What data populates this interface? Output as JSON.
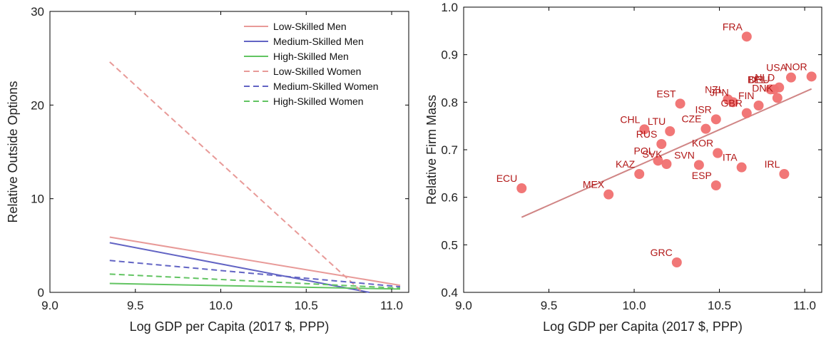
{
  "chart_data": [
    {
      "type": "line",
      "xlabel": "Log GDP per Capita (2017 $, PPP)",
      "ylabel": "Relative Outside Options",
      "xlim": [
        9.0,
        11.1
      ],
      "ylim": [
        0,
        30
      ],
      "xticks": [
        "9.0",
        "9.5",
        "10.0",
        "10.5",
        "11.0"
      ],
      "yticks": [
        "0",
        "10",
        "20",
        "30"
      ],
      "xtick_values": [
        9.0,
        9.5,
        10.0,
        10.5,
        11.0
      ],
      "ytick_values": [
        0,
        10,
        20,
        30
      ],
      "grid": false,
      "legend_position": "top-right",
      "series": [
        {
          "name": "Low-Skilled Men",
          "color": "#e89a98",
          "dash": "solid",
          "x": [
            9.35,
            11.05
          ],
          "y": [
            5.9,
            0.75
          ]
        },
        {
          "name": "Medium-Skilled Men",
          "color": "#6264c4",
          "dash": "solid",
          "x": [
            9.35,
            10.87
          ],
          "y": [
            5.3,
            0.0
          ]
        },
        {
          "name": "High-Skilled Men",
          "color": "#62c462",
          "dash": "solid",
          "x": [
            9.35,
            11.05
          ],
          "y": [
            0.95,
            0.35
          ]
        },
        {
          "name": "Low-Skilled Women",
          "color": "#e89a98",
          "dash": "dashed",
          "x": [
            9.35,
            10.83
          ],
          "y": [
            24.6,
            0.0
          ]
        },
        {
          "name": "Medium-Skilled Women",
          "color": "#6264c4",
          "dash": "dashed",
          "x": [
            9.35,
            11.05
          ],
          "y": [
            3.4,
            0.6
          ]
        },
        {
          "name": "High-Skilled Women",
          "color": "#62c462",
          "dash": "dashed",
          "x": [
            9.35,
            11.05
          ],
          "y": [
            1.95,
            0.45
          ]
        }
      ]
    },
    {
      "type": "scatter",
      "xlabel": "Log GDP per Capita (2017 $, PPP)",
      "ylabel": "Relative Firm Mass",
      "xlim": [
        9.0,
        11.1
      ],
      "ylim": [
        0.4,
        1.0
      ],
      "xticks": [
        "9.0",
        "9.5",
        "10.0",
        "10.5",
        "11.0"
      ],
      "yticks": [
        "0.4",
        "0.5",
        "0.6",
        "0.7",
        "0.8",
        "0.9",
        "1.0"
      ],
      "xtick_values": [
        9.0,
        9.5,
        10.0,
        10.5,
        11.0
      ],
      "ytick_values": [
        0.4,
        0.5,
        0.6,
        0.7,
        0.8,
        0.9,
        1.0
      ],
      "grid": false,
      "point_color": "#f07070",
      "label_color": "#b21818",
      "fit_line": {
        "color": "#d08585",
        "x": [
          9.34,
          11.04
        ],
        "y": [
          0.558,
          0.828
        ]
      },
      "points": [
        {
          "label": "ECU",
          "x": 9.34,
          "y": 0.619
        },
        {
          "label": "MEX",
          "x": 9.85,
          "y": 0.606
        },
        {
          "label": "KAZ",
          "x": 10.03,
          "y": 0.649
        },
        {
          "label": "POL",
          "x": 10.14,
          "y": 0.677
        },
        {
          "label": "SVK",
          "x": 10.19,
          "y": 0.67
        },
        {
          "label": "CHL",
          "x": 10.06,
          "y": 0.743
        },
        {
          "label": "LTU",
          "x": 10.21,
          "y": 0.739
        },
        {
          "label": "RUS",
          "x": 10.16,
          "y": 0.712
        },
        {
          "label": "SVN",
          "x": 10.38,
          "y": 0.668
        },
        {
          "label": "GRC",
          "x": 10.25,
          "y": 0.463
        },
        {
          "label": "EST",
          "x": 10.27,
          "y": 0.797
        },
        {
          "label": "CZE",
          "x": 10.42,
          "y": 0.744
        },
        {
          "label": "ISR",
          "x": 10.48,
          "y": 0.764
        },
        {
          "label": "KOR",
          "x": 10.49,
          "y": 0.693
        },
        {
          "label": "ESP",
          "x": 10.48,
          "y": 0.625
        },
        {
          "label": "ITA",
          "x": 10.63,
          "y": 0.663
        },
        {
          "label": "NZL",
          "x": 10.55,
          "y": 0.806
        },
        {
          "label": "JPN",
          "x": 10.58,
          "y": 0.8
        },
        {
          "label": "GBR",
          "x": 10.66,
          "y": 0.777
        },
        {
          "label": "FIN",
          "x": 10.73,
          "y": 0.793
        },
        {
          "label": "FRA",
          "x": 10.66,
          "y": 0.938
        },
        {
          "label": "BEL",
          "x": 10.8,
          "y": 0.827
        },
        {
          "label": "DEU",
          "x": 10.82,
          "y": 0.827
        },
        {
          "label": "NLD",
          "x": 10.85,
          "y": 0.831
        },
        {
          "label": "DNK",
          "x": 10.84,
          "y": 0.809
        },
        {
          "label": "USA",
          "x": 10.92,
          "y": 0.852
        },
        {
          "label": "NOR",
          "x": 11.04,
          "y": 0.854
        },
        {
          "label": "IRL",
          "x": 10.88,
          "y": 0.649
        }
      ]
    }
  ]
}
